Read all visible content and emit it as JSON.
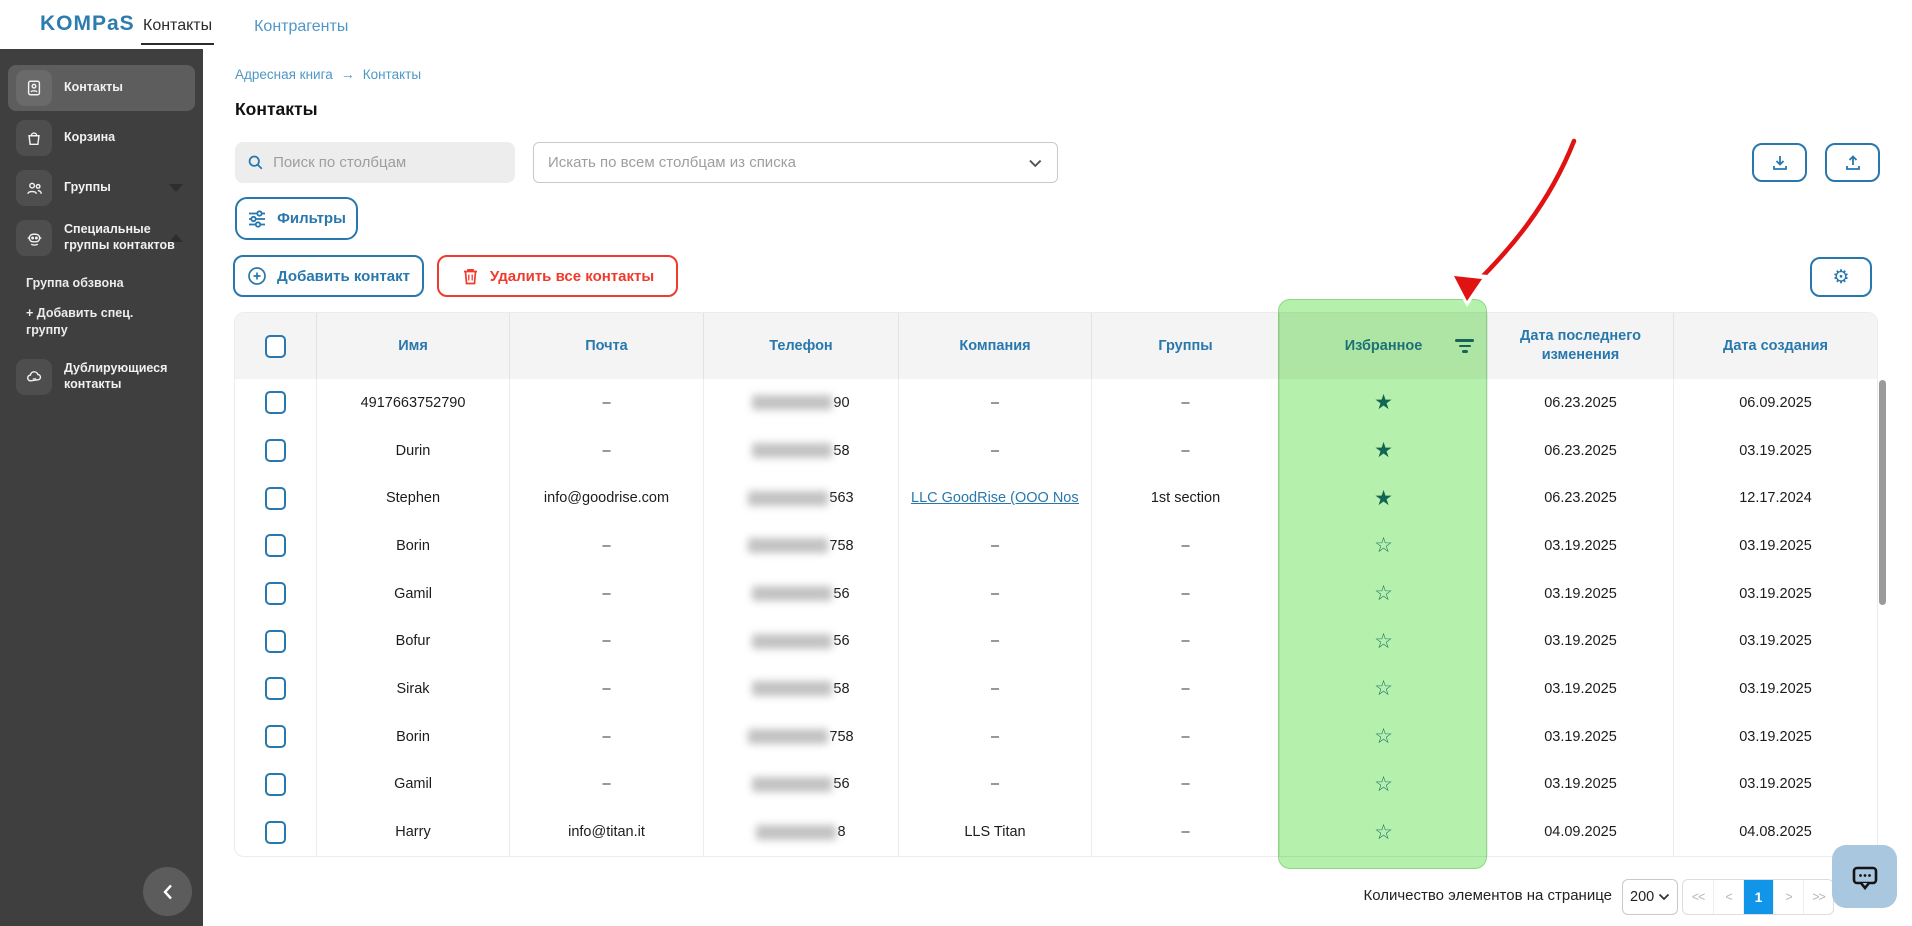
{
  "brand": {
    "logo": "KOMPaS"
  },
  "topnav": {
    "tabs": [
      {
        "label": "Контакты",
        "active": true
      },
      {
        "label": "Контрагенты",
        "active": false
      }
    ]
  },
  "sidebar": {
    "items": [
      {
        "label": "Контакты",
        "icon": "contact-card-icon",
        "active": true
      },
      {
        "label": "Корзина",
        "icon": "basket-icon",
        "active": false
      },
      {
        "label": "Группы",
        "icon": "groups-icon",
        "chevron": "down",
        "active": false
      },
      {
        "label": "Специальные группы контактов",
        "icon": "robot-icon",
        "chevron": "up",
        "active": false
      }
    ],
    "sub_items": [
      {
        "label": "Группа обзвона"
      },
      {
        "label": "+ Добавить спец. группу"
      }
    ],
    "bottom_item": {
      "label": "Дублирующиеся контакты",
      "icon": "cloud-icon"
    }
  },
  "breadcrumb": {
    "items": [
      "Адресная книга",
      "Контакты"
    ],
    "separator": "→"
  },
  "page": {
    "title": "Контакты"
  },
  "search": {
    "column_placeholder": "Поиск по столбцам",
    "all_placeholder": "Искать по всем столбцам из списка"
  },
  "toolbar": {
    "filters_label": "Фильтры",
    "add_contact_label": "Добавить контакт",
    "delete_all_label": "Удалить все контакты"
  },
  "table": {
    "headers": [
      "Имя",
      "Почта",
      "Телефон",
      "Компания",
      "Группы",
      "Избранное",
      "Дата последнего изменения",
      "Дата создания"
    ],
    "highlighted_column": "Избранное",
    "rows": [
      {
        "name": "4917663752790",
        "email": "–",
        "phone_suffix": "90",
        "company": "–",
        "company_link": false,
        "groups": "–",
        "favorite": true,
        "modified": "06.23.2025",
        "created": "06.09.2025"
      },
      {
        "name": "Durin",
        "email": "–",
        "phone_suffix": "58",
        "company": "–",
        "company_link": false,
        "groups": "–",
        "favorite": true,
        "modified": "06.23.2025",
        "created": "03.19.2025"
      },
      {
        "name": "Stephen",
        "email": "info@goodrise.com",
        "phone_suffix": "563",
        "company": "LLC GoodRise (OOO Nos…",
        "company_link": true,
        "groups": "1st section",
        "favorite": true,
        "modified": "06.23.2025",
        "created": "12.17.2024"
      },
      {
        "name": "Borin",
        "email": "–",
        "phone_suffix": "758",
        "company": "–",
        "company_link": false,
        "groups": "–",
        "favorite": false,
        "modified": "03.19.2025",
        "created": "03.19.2025"
      },
      {
        "name": "Gamil",
        "email": "–",
        "phone_suffix": "56",
        "company": "–",
        "company_link": false,
        "groups": "–",
        "favorite": false,
        "modified": "03.19.2025",
        "created": "03.19.2025"
      },
      {
        "name": "Bofur",
        "email": "–",
        "phone_suffix": "56",
        "company": "–",
        "company_link": false,
        "groups": "–",
        "favorite": false,
        "modified": "03.19.2025",
        "created": "03.19.2025"
      },
      {
        "name": "Sirak",
        "email": "–",
        "phone_suffix": "58",
        "company": "–",
        "company_link": false,
        "groups": "–",
        "favorite": false,
        "modified": "03.19.2025",
        "created": "03.19.2025"
      },
      {
        "name": "Borin",
        "email": "–",
        "phone_suffix": "758",
        "company": "–",
        "company_link": false,
        "groups": "–",
        "favorite": false,
        "modified": "03.19.2025",
        "created": "03.19.2025"
      },
      {
        "name": "Gamil",
        "email": "–",
        "phone_suffix": "56",
        "company": "–",
        "company_link": false,
        "groups": "–",
        "favorite": false,
        "modified": "03.19.2025",
        "created": "03.19.2025"
      },
      {
        "name": "Harry",
        "email": "info@titan.it",
        "phone_suffix": "8",
        "company": "LLS Titan",
        "company_link": false,
        "groups": "–",
        "favorite": false,
        "modified": "04.09.2025",
        "created": "04.08.2025"
      }
    ]
  },
  "footer": {
    "page_size_label": "Количество элементов на странице",
    "page_size": "200",
    "pager": [
      "<<",
      "<",
      "1",
      ">",
      ">>"
    ],
    "active_page": "1"
  },
  "colors": {
    "accent_blue": "#2878ad",
    "danger_red": "#ef3b2d",
    "highlight_green": "#b6f0ad",
    "pager_active_blue": "#1095e8",
    "star_teal": "#1d6b7c",
    "sidebar_bg": "#3f3f3f"
  }
}
